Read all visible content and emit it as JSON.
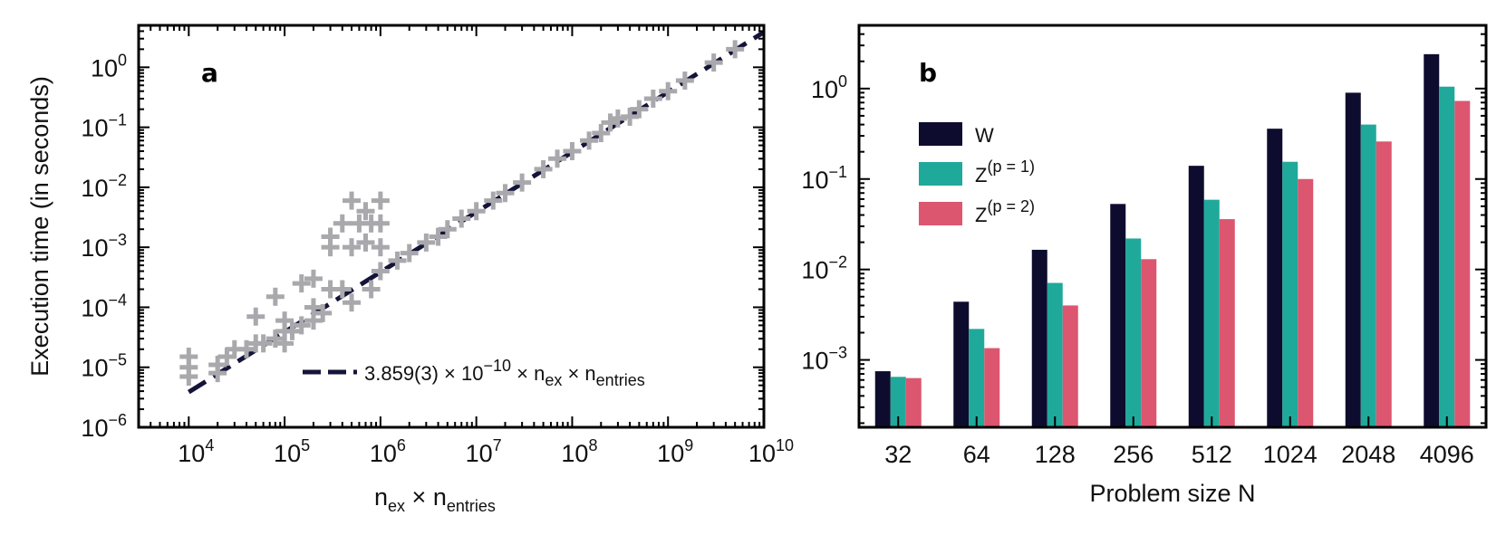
{
  "chart_data": [
    {
      "type": "scatter",
      "panel_label": "a",
      "xscale": "log",
      "yscale": "log",
      "xlim": [
        3000.0,
        10000000000.0
      ],
      "ylim": [
        1e-06,
        5
      ],
      "xticks": [
        {
          "base": "10",
          "exp": "4"
        },
        {
          "base": "10",
          "exp": "5"
        },
        {
          "base": "10",
          "exp": "6"
        },
        {
          "base": "10",
          "exp": "7"
        },
        {
          "base": "10",
          "exp": "8"
        },
        {
          "base": "10",
          "exp": "9"
        },
        {
          "base": "10",
          "exp": "10"
        }
      ],
      "yticks": [
        {
          "base": "10",
          "exp": "−6"
        },
        {
          "base": "10",
          "exp": "−5"
        },
        {
          "base": "10",
          "exp": "−4"
        },
        {
          "base": "10",
          "exp": "−3"
        },
        {
          "base": "10",
          "exp": "−2"
        },
        {
          "base": "10",
          "exp": "−1"
        },
        {
          "base": "10",
          "exp": "0"
        }
      ],
      "xlabel": {
        "n": "n",
        "ex": "ex",
        "times": " × ",
        "n2": "n",
        "entries": "entries"
      },
      "ylabel": "Execution time (in seconds)",
      "marker_color": "#a9a9ad",
      "fit_color": "#14143a",
      "fit": {
        "coefficient": 3.859e-10,
        "x_range": [
          10000.0,
          10000000000.0
        ],
        "legend": {
          "coef": "3.859(3) × 10",
          "exp": "−10",
          "mid": " × n",
          "sub1": "ex",
          "mid2": " × n",
          "sub2": "entries"
        }
      },
      "points": [
        {
          "x": 10000.0,
          "y": 1.5e-05
        },
        {
          "x": 10000.0,
          "y": 1e-05
        },
        {
          "x": 10000.0,
          "y": 7e-06
        },
        {
          "x": 20000.0,
          "y": 1.1e-05
        },
        {
          "x": 20000.0,
          "y": 8e-06
        },
        {
          "x": 25000.0,
          "y": 1.5e-05
        },
        {
          "x": 30000.0,
          "y": 2e-05
        },
        {
          "x": 40000.0,
          "y": 2e-05
        },
        {
          "x": 50000.0,
          "y": 7e-05
        },
        {
          "x": 50000.0,
          "y": 2.5e-05
        },
        {
          "x": 60000.0,
          "y": 2.5e-05
        },
        {
          "x": 80000.0,
          "y": 3e-05
        },
        {
          "x": 80000.0,
          "y": 0.00015
        },
        {
          "x": 100000.0,
          "y": 4e-05
        },
        {
          "x": 100000.0,
          "y": 2.5e-05
        },
        {
          "x": 100000.0,
          "y": 6e-05
        },
        {
          "x": 120000.0,
          "y": 4e-05
        },
        {
          "x": 150000.0,
          "y": 0.00025
        },
        {
          "x": 150000.0,
          "y": 5e-05
        },
        {
          "x": 200000.0,
          "y": 0.0003
        },
        {
          "x": 200000.0,
          "y": 0.0001
        },
        {
          "x": 200000.0,
          "y": 6e-05
        },
        {
          "x": 250000.0,
          "y": 8e-05
        },
        {
          "x": 300000.0,
          "y": 0.0002
        },
        {
          "x": 300000.0,
          "y": 0.0015
        },
        {
          "x": 300000.0,
          "y": 0.001
        },
        {
          "x": 400000.0,
          "y": 0.0025
        },
        {
          "x": 400000.0,
          "y": 0.0002
        },
        {
          "x": 500000.0,
          "y": 0.00012
        },
        {
          "x": 500000.0,
          "y": 0.006
        },
        {
          "x": 500000.0,
          "y": 0.001
        },
        {
          "x": 600000.0,
          "y": 0.0025
        },
        {
          "x": 700000.0,
          "y": 0.004
        },
        {
          "x": 700000.0,
          "y": 0.0012
        },
        {
          "x": 800000.0,
          "y": 0.0025
        },
        {
          "x": 800000.0,
          "y": 0.0002
        },
        {
          "x": 1000000.0,
          "y": 0.006
        },
        {
          "x": 1000000.0,
          "y": 0.0025
        },
        {
          "x": 1000000.0,
          "y": 0.001
        },
        {
          "x": 1000000.0,
          "y": 0.0004
        },
        {
          "x": 1500000.0,
          "y": 0.0006
        },
        {
          "x": 2000000.0,
          "y": 0.0008
        },
        {
          "x": 3000000.0,
          "y": 0.0012
        },
        {
          "x": 4000000.0,
          "y": 0.0015
        },
        {
          "x": 5000000.0,
          "y": 0.002
        },
        {
          "x": 7000000.0,
          "y": 0.003
        },
        {
          "x": 10000000.0,
          "y": 0.004
        },
        {
          "x": 15000000.0,
          "y": 0.006
        },
        {
          "x": 20000000.0,
          "y": 0.008
        },
        {
          "x": 30000000.0,
          "y": 0.012
        },
        {
          "x": 50000000.0,
          "y": 0.02
        },
        {
          "x": 70000000.0,
          "y": 0.03
        },
        {
          "x": 100000000.0,
          "y": 0.04
        },
        {
          "x": 150000000.0,
          "y": 0.06
        },
        {
          "x": 200000000.0,
          "y": 0.08
        },
        {
          "x": 250000000.0,
          "y": 0.12
        },
        {
          "x": 300000000.0,
          "y": 0.14
        },
        {
          "x": 400000000.0,
          "y": 0.15
        },
        {
          "x": 500000000.0,
          "y": 0.2
        },
        {
          "x": 700000000.0,
          "y": 0.3
        },
        {
          "x": 1000000000.0,
          "y": 0.4
        },
        {
          "x": 1500000000.0,
          "y": 0.6
        },
        {
          "x": 3000000000.0,
          "y": 1.2
        },
        {
          "x": 5000000000.0,
          "y": 2
        }
      ]
    },
    {
      "type": "bar",
      "panel_label": "b",
      "yscale": "log",
      "ylim": [
        0.00018,
        5
      ],
      "categories": [
        "32",
        "64",
        "128",
        "256",
        "512",
        "1024",
        "2048",
        "4096"
      ],
      "xlabel": "Problem size N",
      "ylabel": "",
      "yticks": [
        {
          "base": "10",
          "exp": "−3"
        },
        {
          "base": "10",
          "exp": "−2"
        },
        {
          "base": "10",
          "exp": "−1"
        },
        {
          "base": "10",
          "exp": "0"
        }
      ],
      "series": [
        {
          "name": "W",
          "sup": "",
          "color": "#0e0c2e",
          "values": [
            0.00075,
            0.0044,
            0.0165,
            0.053,
            0.14,
            0.36,
            0.9,
            2.4
          ]
        },
        {
          "name": "Z",
          "sup": "(p = 1)",
          "color": "#1fa99b",
          "values": [
            0.00065,
            0.0022,
            0.0071,
            0.022,
            0.059,
            0.155,
            0.4,
            1.05
          ]
        },
        {
          "name": "Z",
          "sup": "(p = 2)",
          "color": "#dc566f",
          "values": [
            0.00063,
            0.00135,
            0.004,
            0.013,
            0.036,
            0.1,
            0.26,
            0.73
          ]
        }
      ],
      "legend_position": "upper-left"
    }
  ]
}
